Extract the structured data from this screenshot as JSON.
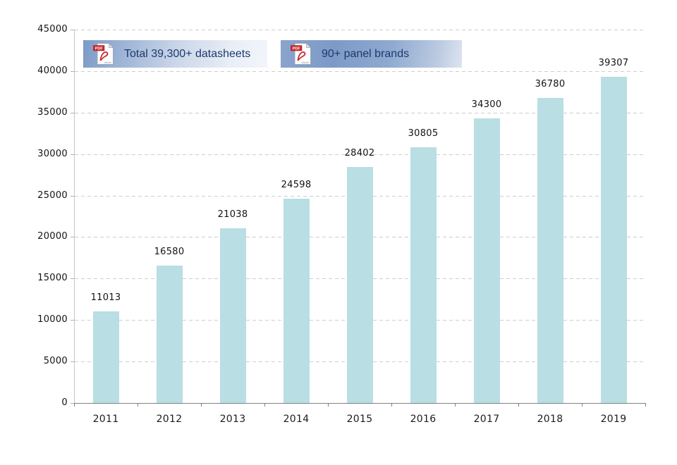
{
  "badges": [
    {
      "label": "Total 39,300+ datasheets",
      "icon": "pdf-icon"
    },
    {
      "label": "90+ panel brands",
      "icon": "pdf-icon"
    }
  ],
  "chart_data": {
    "type": "bar",
    "title": "",
    "xlabel": "",
    "ylabel": "",
    "categories": [
      "2011",
      "2012",
      "2013",
      "2014",
      "2015",
      "2016",
      "2017",
      "2018",
      "2019"
    ],
    "values": [
      11013,
      16580,
      21038,
      24598,
      28402,
      30805,
      34300,
      36780,
      39307
    ],
    "ylim": [
      0,
      45000
    ],
    "ytick_step": 5000,
    "grid": true,
    "legend_position": "none",
    "value_labels": true
  },
  "colors": {
    "bar": "#b9dee4",
    "gridline": "#cdcdcd",
    "y_axis": "#c6c6c6",
    "x_axis": "#818181",
    "badge_text": "#1b3a6e",
    "badge_gradient_start": "#7d9bc8",
    "badge_gradient_end": "#f2f5fb",
    "pdf_icon_red": "#cd2128"
  }
}
